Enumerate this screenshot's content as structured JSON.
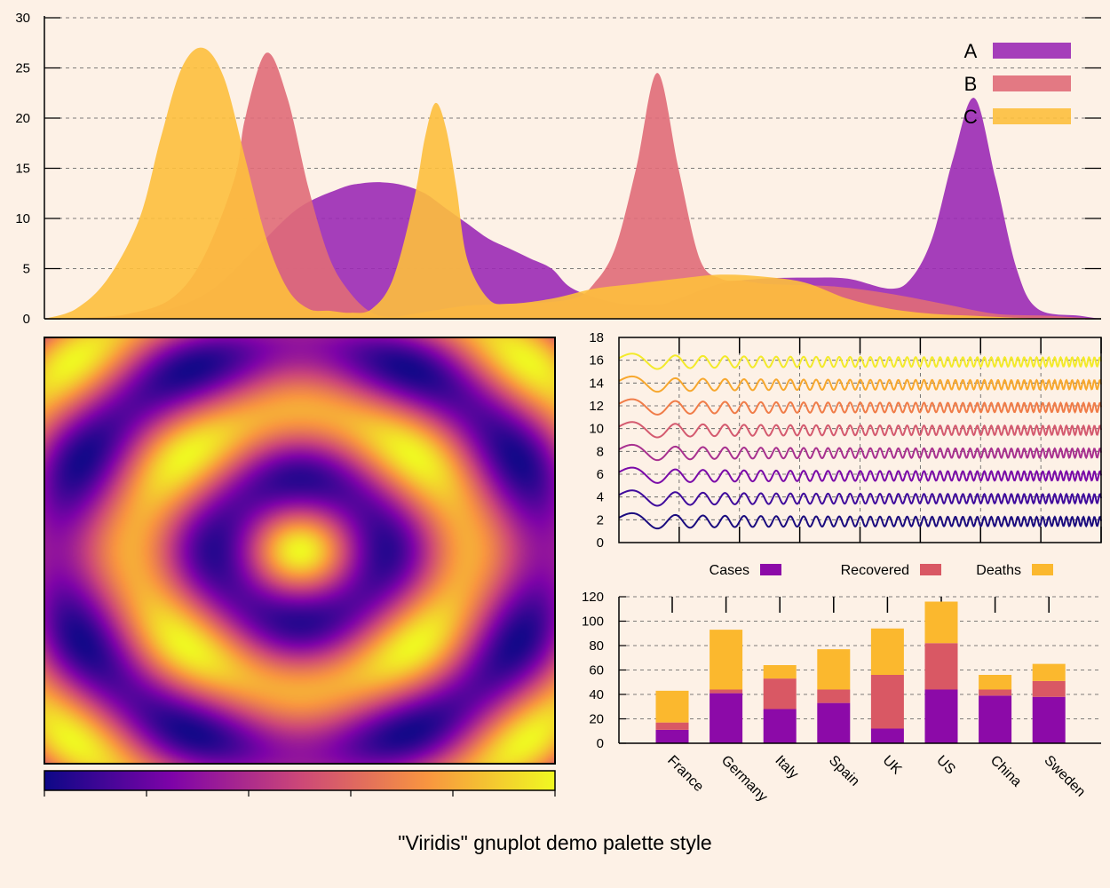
{
  "title": "\"Viridis\" gnuplot demo palette style",
  "colors": {
    "background": "#fdf1e6",
    "A": "#9b2ab5",
    "B": "#e06b78",
    "C": "#fdbf3d",
    "cases": "#8c0aa8",
    "recovered": "#d95864",
    "deaths": "#fbb82e"
  },
  "chart_data": [
    {
      "type": "area",
      "x_range": [
        0,
        100
      ],
      "ylim": [
        0,
        30
      ],
      "yticks": [
        0,
        5,
        10,
        15,
        20,
        25,
        30
      ],
      "grid": true,
      "legend_placement": "top-right",
      "series": [
        {
          "name": "A",
          "color": "#9b2ab5",
          "opacity": 0.9,
          "x": [
            0,
            4,
            8,
            12,
            16,
            20,
            24,
            28,
            30,
            32,
            34,
            36,
            38,
            40,
            42,
            44,
            46,
            48,
            50,
            54,
            58,
            60,
            64,
            68,
            72,
            76,
            80,
            82,
            84,
            86,
            88,
            90,
            92,
            94,
            98,
            100
          ],
          "y": [
            0,
            0.1,
            0.3,
            1,
            3,
            7,
            11,
            13,
            13.5,
            13.6,
            13.3,
            12.5,
            11,
            9.5,
            8,
            7,
            6,
            5,
            3,
            1.6,
            1.4,
            2,
            3.5,
            4,
            4.1,
            4,
            3,
            4,
            8,
            16,
            22,
            14,
            5,
            1,
            0.3,
            0
          ]
        },
        {
          "name": "B",
          "color": "#e06b78",
          "opacity": 0.9,
          "x": [
            0,
            4,
            8,
            12,
            15,
            18,
            19,
            21,
            23,
            25,
            27,
            29,
            31,
            33,
            35,
            40,
            45,
            50,
            52,
            54,
            56,
            58,
            60,
            62,
            64,
            66,
            68,
            70,
            75,
            80,
            85,
            90,
            95,
            100
          ],
          "y": [
            0,
            0.1,
            0.5,
            2,
            6,
            14,
            20,
            26.5,
            22,
            13,
            6,
            2.5,
            0.6,
            0.2,
            0.5,
            1.3,
            1.5,
            2,
            3.5,
            7,
            15,
            24.5,
            15,
            6,
            4,
            3.8,
            3.5,
            3.4,
            3.2,
            2.5,
            1.5,
            0.5,
            0.3,
            0
          ]
        },
        {
          "name": "C",
          "color": "#fdbf3d",
          "opacity": 0.9,
          "x": [
            0,
            3,
            6,
            9,
            11,
            13,
            15,
            17,
            19,
            21,
            23,
            25,
            27,
            29,
            31,
            33,
            35,
            36,
            37,
            38,
            39,
            40,
            42,
            44,
            48,
            52,
            56,
            60,
            64,
            68,
            72,
            76,
            80,
            84,
            88,
            92,
            96,
            100
          ],
          "y": [
            0,
            1,
            4,
            10,
            18,
            25,
            27,
            24,
            16,
            8,
            3,
            1,
            0.8,
            0.6,
            1,
            4,
            12,
            18,
            21.5,
            19,
            13,
            6,
            2,
            1.5,
            2,
            3,
            3.5,
            4,
            4.4,
            4.2,
            3.6,
            2,
            1,
            0.5,
            0.3,
            0.1,
            0,
            0
          ]
        }
      ]
    },
    {
      "type": "heatmap",
      "function": "rings",
      "colorbar_ticks": 6
    },
    {
      "type": "line",
      "ylim": [
        0,
        18
      ],
      "yticks": [
        0,
        2,
        4,
        6,
        8,
        10,
        12,
        14,
        16,
        18
      ],
      "grid": true,
      "series": [
        {
          "offset": 2,
          "color": "#1a0b7e"
        },
        {
          "offset": 4,
          "color": "#3f0b9c"
        },
        {
          "offset": 6,
          "color": "#7a0aa8"
        },
        {
          "offset": 8,
          "color": "#a8308f"
        },
        {
          "offset": 10,
          "color": "#d45a6f"
        },
        {
          "offset": 12,
          "color": "#f07c48"
        },
        {
          "offset": 14,
          "color": "#f7a72d"
        },
        {
          "offset": 16,
          "color": "#f3ea2a"
        }
      ]
    },
    {
      "type": "bar",
      "stacked": true,
      "ylim": [
        0,
        120
      ],
      "yticks": [
        0,
        20,
        40,
        60,
        80,
        100,
        120
      ],
      "grid": true,
      "legend_placement": "top",
      "categories": [
        "France",
        "Germany",
        "Italy",
        "Spain",
        "UK",
        "US",
        "China",
        "Sweden"
      ],
      "series": [
        {
          "name": "Cases",
          "color": "#8c0aa8",
          "values": [
            11,
            41,
            28,
            33,
            12,
            44,
            39,
            38
          ]
        },
        {
          "name": "Recovered",
          "color": "#d95864",
          "values": [
            6,
            3,
            25,
            11,
            44,
            38,
            5,
            13
          ]
        },
        {
          "name": "Deaths",
          "color": "#fbb82e",
          "values": [
            26,
            49,
            11,
            33,
            38,
            34,
            12,
            14
          ]
        }
      ]
    }
  ]
}
